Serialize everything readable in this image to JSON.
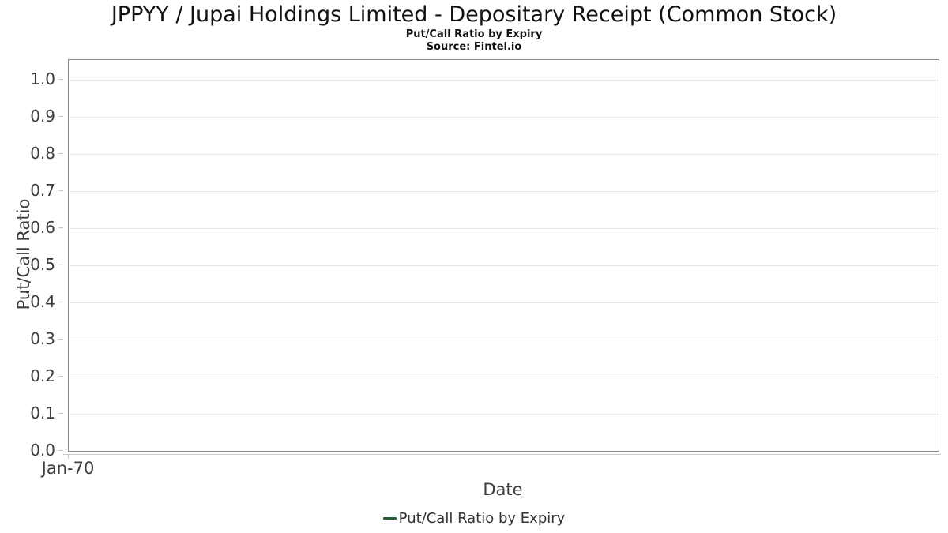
{
  "header": {
    "title": "JPPYY / Jupai Holdings Limited - Depositary Receipt (Common Stock)",
    "subtitle": "Put/Call Ratio by Expiry",
    "source": "Source: Fintel.io"
  },
  "colors": {
    "grid": "#e6e6e6",
    "plot_border": "#888888",
    "axis_line": "#c8c8c8",
    "tick_mark": "#c6c6c6",
    "axis_text": "#3c3c3c",
    "series_green": "#265f35"
  },
  "chart_data": {
    "type": "line",
    "title": "JPPYY / Jupai Holdings Limited - Depositary Receipt (Common Stock)",
    "subtitle": "Put/Call Ratio by Expiry",
    "source_text": "Source: Fintel.io",
    "xlabel": "Date",
    "ylabel": "Put/Call Ratio",
    "x_tick_labels": [
      "Jan-70"
    ],
    "y_ticks": [
      0.0,
      0.1,
      0.2,
      0.3,
      0.4,
      0.5,
      0.6,
      0.7,
      0.8,
      0.9,
      1.0
    ],
    "ylim": [
      0,
      1.053
    ],
    "grid": true,
    "legend_position": "bottom",
    "series": [
      {
        "name": "Put/Call Ratio by Expiry",
        "color": "#265f35",
        "x": [],
        "values": []
      }
    ]
  }
}
